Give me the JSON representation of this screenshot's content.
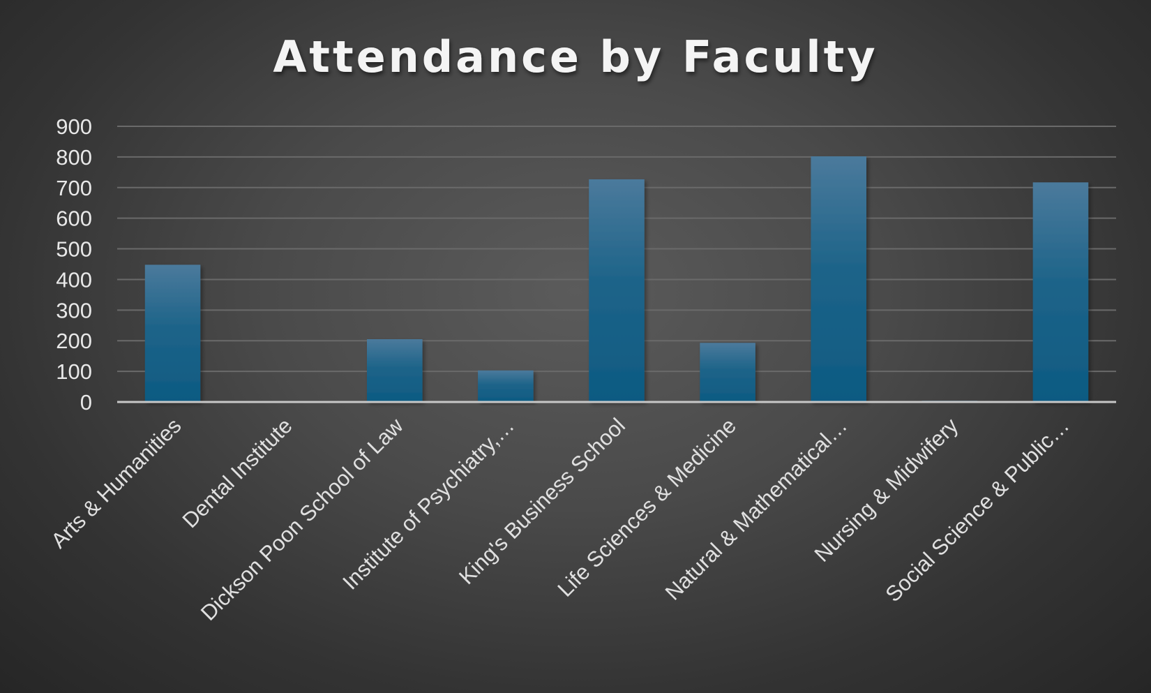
{
  "chart_data": {
    "type": "bar",
    "title": "Attendance by Faculty",
    "categories": [
      "Arts & Humanities",
      "Dental Institute",
      "Dickson Poon School of Law",
      "Institute of Psychiatry,…",
      "King's Business School",
      "Life Sciences & Medicine",
      "Natural & Mathematical…",
      "Nursing & Midwifery",
      "Social Science & Public…"
    ],
    "values": [
      448,
      0,
      205,
      103,
      727,
      193,
      802,
      4,
      717
    ],
    "xlabel": "",
    "ylabel": "",
    "ylim": [
      0,
      900
    ],
    "yticks": [
      "0",
      "100",
      "200",
      "300",
      "400",
      "500",
      "600",
      "700",
      "800",
      "900"
    ],
    "grid": true,
    "legend": "none",
    "colors": {
      "bar_top": "#4b7a9c",
      "bar_bottom": "#0d5a82",
      "title": "#f4f4f4",
      "text": "#e0e0e0"
    }
  }
}
